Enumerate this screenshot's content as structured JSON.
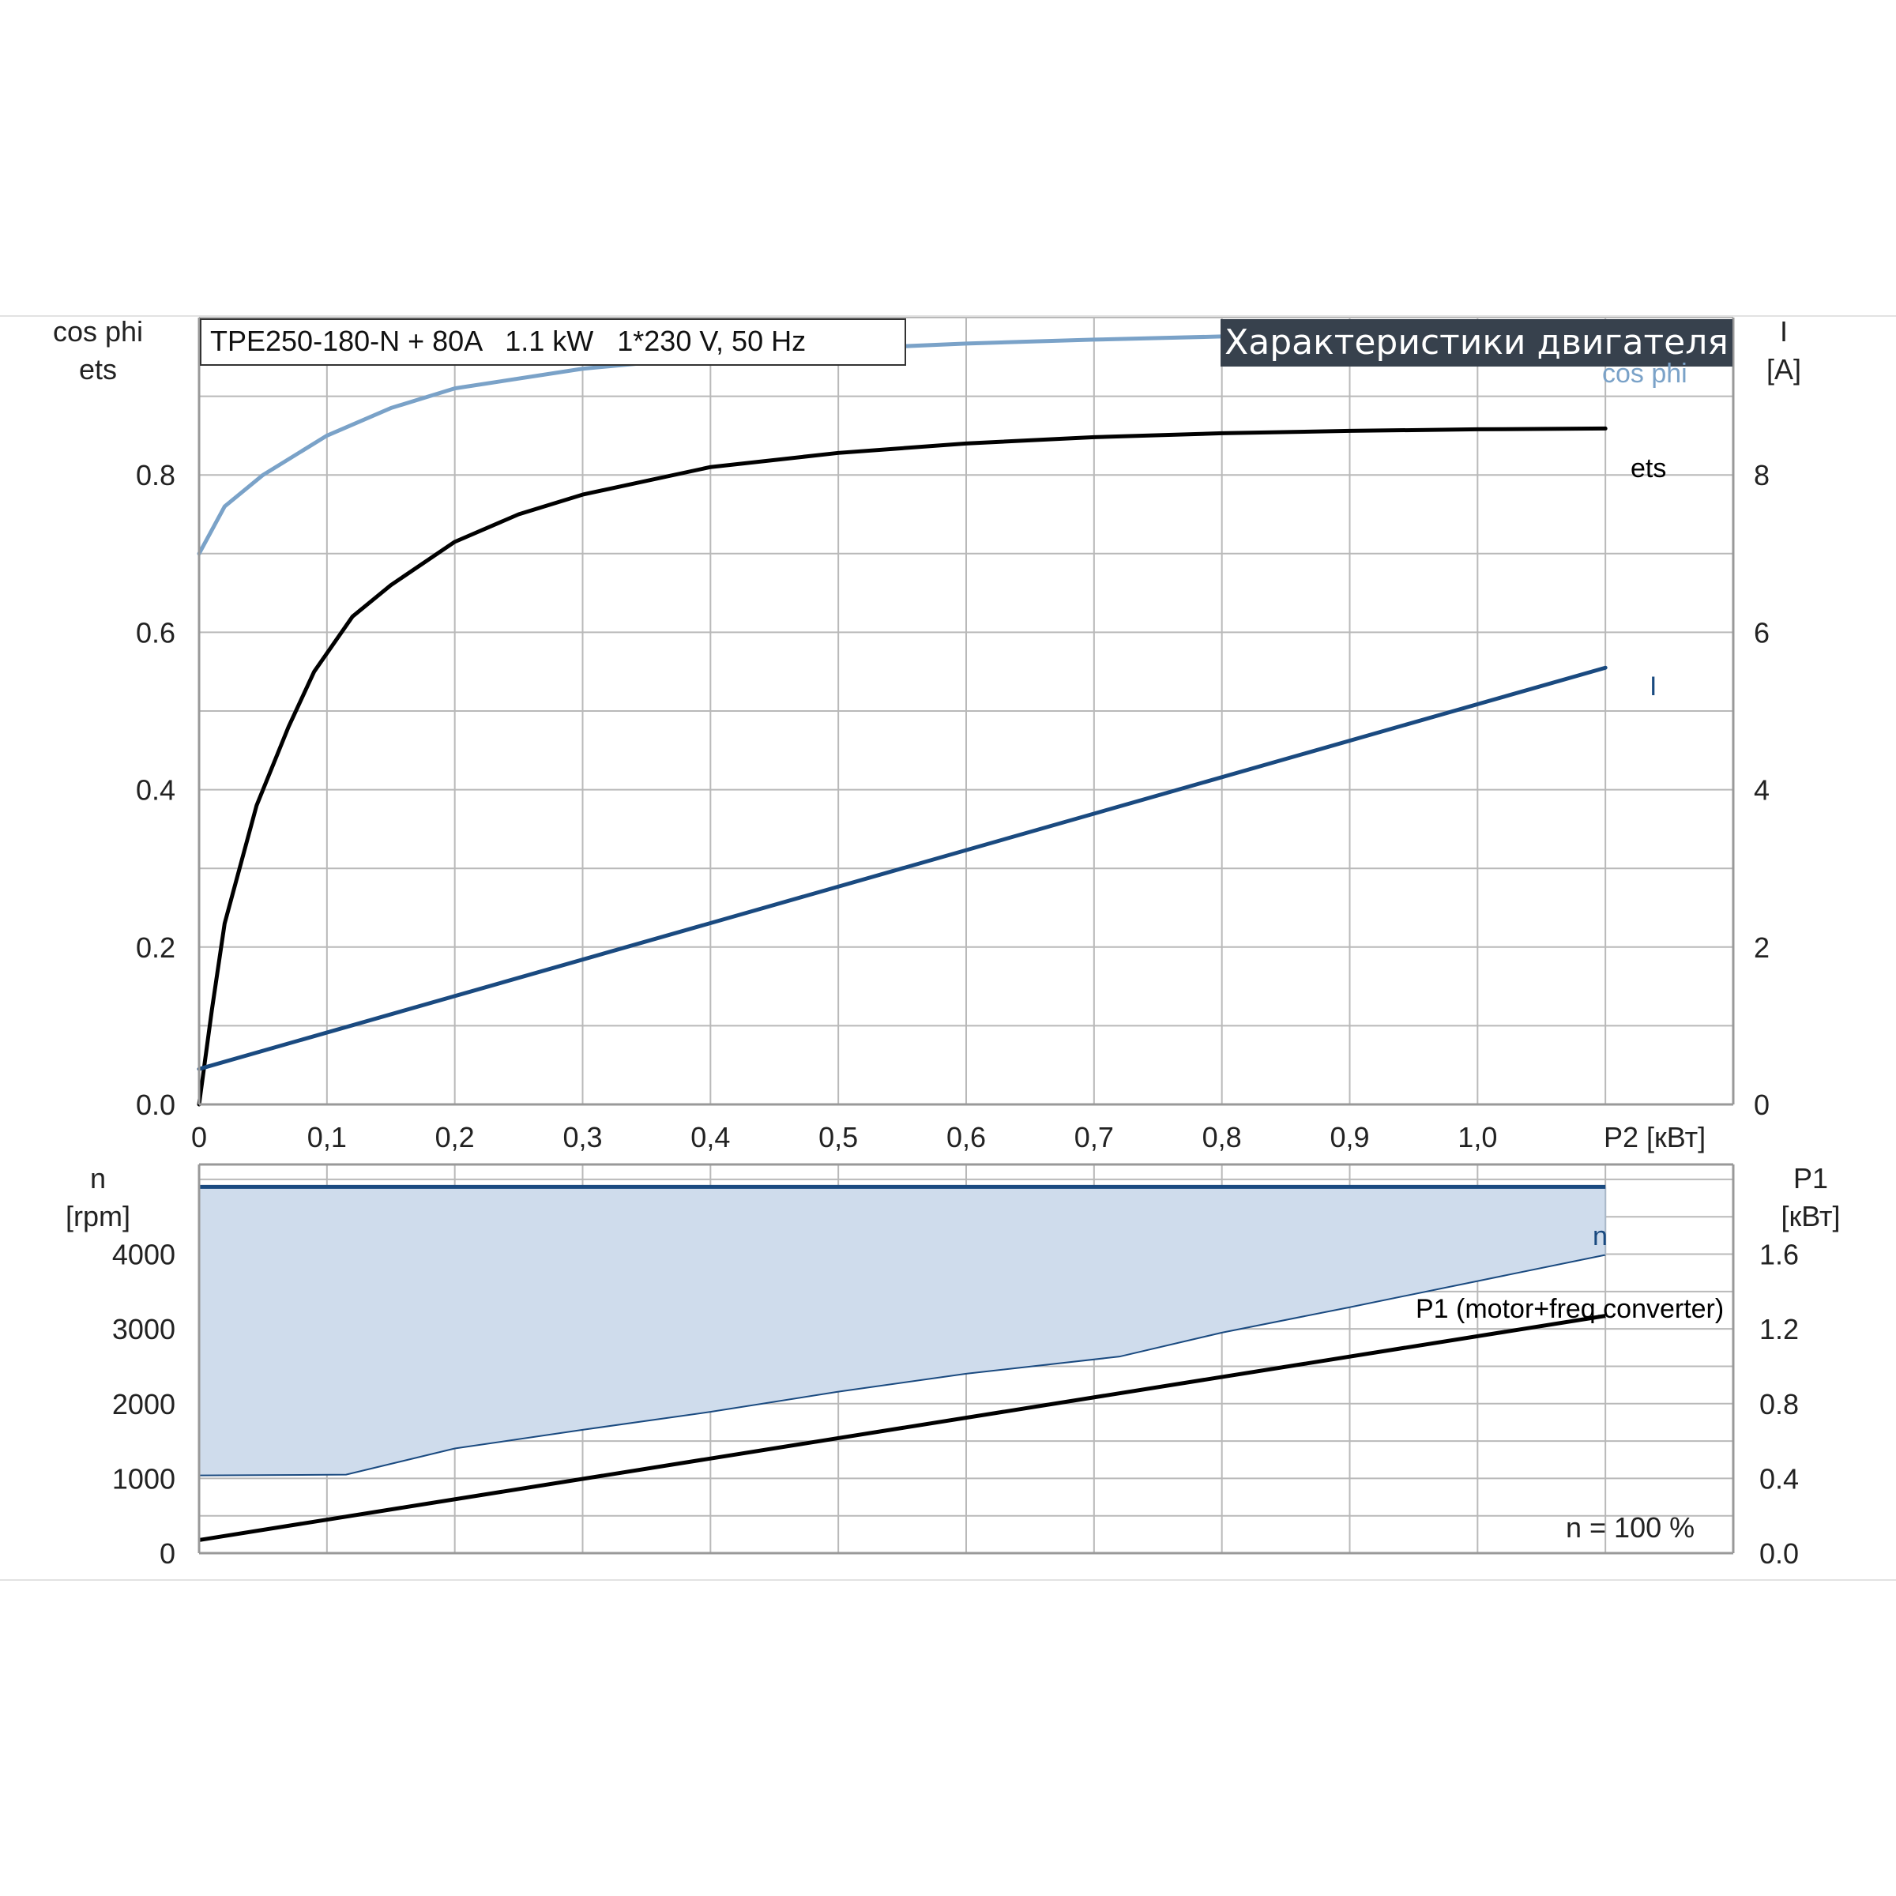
{
  "header": {
    "model": "TPE250-180-N + 80A   1.1 kW   1*230 V, 50 Hz",
    "badge": "Характеристики двигателя"
  },
  "colors": {
    "cosphi": "#7aa2c8",
    "ets": "#000000",
    "current": "#1a4a80",
    "speed": "#1a4a80",
    "speed_fill": "#cfdcec",
    "p1": "#000000",
    "badge_bg": "#37414d"
  },
  "chart_data": [
    {
      "type": "line",
      "title": "",
      "xlabel": "P2 [кВт]",
      "xlim": [
        0,
        1.2
      ],
      "x_ticks": [
        "0",
        "0,1",
        "0,2",
        "0,3",
        "0,4",
        "0,5",
        "0,6",
        "0,7",
        "0,8",
        "0,9",
        "1,0"
      ],
      "y_left": {
        "label_line1": "cos phi",
        "label_line2": "ets",
        "ylim": [
          0,
          1.0
        ],
        "ticks": [
          "0.0",
          "0.2",
          "0.4",
          "0.6",
          "0.8"
        ]
      },
      "y_right": {
        "label_line1": "I",
        "label_line2": "[A]",
        "ylim": [
          0,
          10
        ],
        "ticks": [
          "0",
          "2",
          "4",
          "6",
          "8"
        ]
      },
      "series": [
        {
          "name": "cos phi",
          "axis": "left",
          "x": [
            0,
            0.02,
            0.05,
            0.08,
            0.1,
            0.15,
            0.2,
            0.3,
            0.4,
            0.5,
            0.6,
            0.7,
            0.8,
            0.9,
            1.0,
            1.1
          ],
          "y": [
            0.7,
            0.76,
            0.8,
            0.83,
            0.85,
            0.885,
            0.91,
            0.935,
            0.95,
            0.96,
            0.967,
            0.972,
            0.976,
            0.98,
            0.983,
            0.986
          ]
        },
        {
          "name": "ets",
          "axis": "left",
          "x": [
            0,
            0.01,
            0.02,
            0.045,
            0.07,
            0.09,
            0.12,
            0.15,
            0.2,
            0.25,
            0.3,
            0.4,
            0.5,
            0.6,
            0.7,
            0.8,
            0.9,
            1.0,
            1.1
          ],
          "y": [
            0.0,
            0.12,
            0.23,
            0.38,
            0.48,
            0.55,
            0.62,
            0.66,
            0.715,
            0.75,
            0.775,
            0.81,
            0.828,
            0.84,
            0.848,
            0.853,
            0.856,
            0.858,
            0.859
          ]
        },
        {
          "name": "I",
          "axis": "right",
          "x": [
            0,
            1.1
          ],
          "y": [
            0.45,
            5.55
          ]
        }
      ]
    },
    {
      "type": "line",
      "title": "",
      "xlim": [
        0,
        1.2
      ],
      "y_left": {
        "label_line1": "n",
        "label_line2": "[rpm]",
        "ylim": [
          0,
          5200
        ],
        "ticks": [
          "0",
          "1000",
          "2000",
          "3000",
          "4000"
        ]
      },
      "y_right": {
        "label_line1": "P1",
        "label_line2": "[кВт]",
        "ylim": [
          0,
          2.08
        ],
        "ticks": [
          "0.0",
          "0.4",
          "0.8",
          "1.2",
          "1.6"
        ]
      },
      "series": [
        {
          "name": "n",
          "axis": "left",
          "x": [
            0,
            1.1
          ],
          "y": [
            4900,
            4900
          ]
        },
        {
          "name": "n_min",
          "axis": "left",
          "x": [
            0,
            0.115,
            0.2,
            0.3,
            0.4,
            0.5,
            0.6,
            0.72,
            0.8,
            0.9,
            1.0,
            1.1
          ],
          "y": [
            1040,
            1050,
            1400,
            1650,
            1890,
            2160,
            2400,
            2630,
            2950,
            3290,
            3640,
            3990
          ]
        },
        {
          "name": "P1 (motor+freq.converter)",
          "axis": "right",
          "x": [
            0,
            1.1
          ],
          "y": [
            0.07,
            1.27
          ]
        }
      ],
      "annotation": "n = 100 %"
    }
  ]
}
